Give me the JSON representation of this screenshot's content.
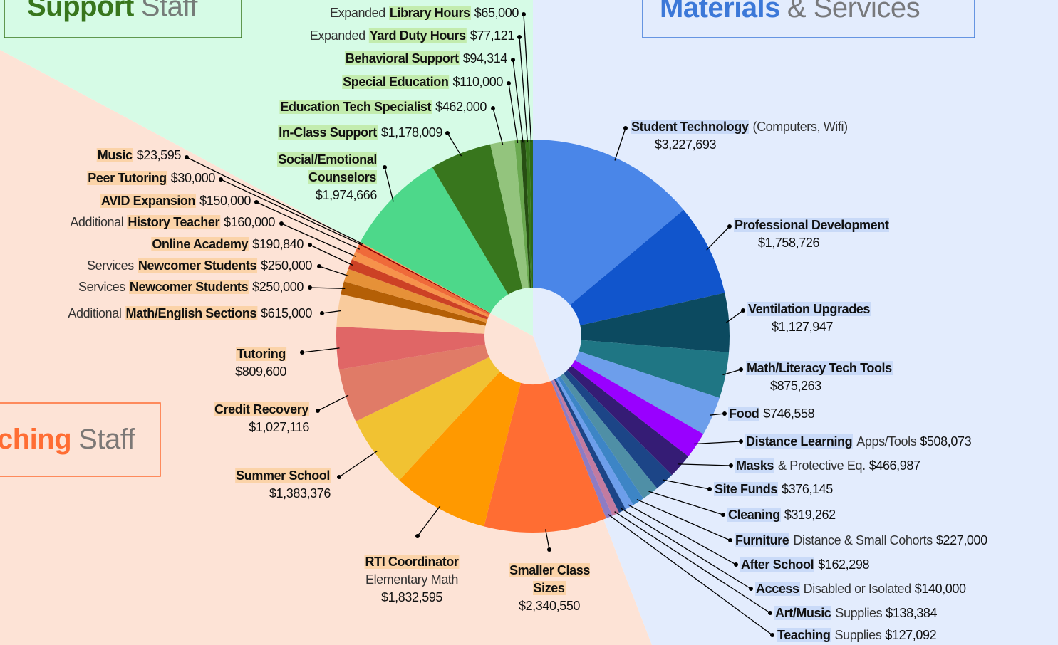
{
  "chart_data": {
    "type": "pie",
    "categories": [
      "Student Technology",
      "Professional Development",
      "Ventilation Upgrades",
      "Math/Literacy Tech Tools",
      "Food",
      "Distance Learning",
      "Masks",
      "Site Funds",
      "Cleaning",
      "Furniture",
      "After School",
      "Access",
      "Art/Music",
      "Teaching",
      "Smaller Class Sizes",
      "RTI Coordinator",
      "Summer School",
      "Credit Recovery",
      "Tutoring",
      "Math/English Sections",
      "Newcomer Students",
      "Newcomer Students",
      "Online Academy",
      "History Teacher",
      "AVID Expansion",
      "Peer Tutoring",
      "Music",
      "Social/Emotional Counselors",
      "In-Class Support",
      "Education Tech Specialist",
      "Special Education",
      "Behavioral Support",
      "Yard Duty Hours",
      "Library Hours"
    ],
    "prefixes": [
      null,
      null,
      null,
      null,
      null,
      null,
      null,
      null,
      null,
      null,
      null,
      null,
      null,
      null,
      null,
      null,
      null,
      null,
      null,
      "Additional",
      "Services",
      "Services",
      null,
      "Additional",
      null,
      null,
      null,
      null,
      null,
      null,
      null,
      null,
      "Expanded",
      "Expanded"
    ],
    "notes": [
      "(Computers, Wifi)",
      null,
      null,
      null,
      null,
      "Apps/Tools",
      "& Protective Eq.",
      null,
      null,
      "Distance & Small Cohorts",
      null,
      "Disabled or Isolated",
      "Supplies",
      "Supplies",
      null,
      "Elementary Math",
      null,
      null,
      null,
      null,
      null,
      null,
      null,
      null,
      null,
      null,
      null,
      null,
      null,
      null,
      null,
      null,
      null,
      null
    ],
    "values": [
      3227693,
      1758726,
      1127947,
      875263,
      746558,
      508073,
      466987,
      376145,
      319262,
      227000,
      162298,
      140000,
      138384,
      127092,
      2340550,
      1832595,
      1383376,
      1027116,
      809600,
      615000,
      250000,
      250000,
      190840,
      160000,
      150000,
      30000,
      23595,
      1974666,
      1178009,
      462000,
      110000,
      94314,
      77121,
      65000
    ],
    "value_labels": [
      "$3,227,693",
      "$1,758,726",
      "$1,127,947",
      "$875,263",
      "$746,558",
      "$508,073",
      "$466,987",
      "$376,145",
      "$319,262",
      "$227,000",
      "$162,298",
      "$140,000",
      "$138,384",
      "$127,092",
      "$2,340,550",
      "$1,832,595",
      "$1,383,376",
      "$1,027,116",
      "$809,600",
      "$615,000",
      "$250,000",
      "$250,000",
      "$190,840",
      "$160,000",
      "$150,000",
      "$30,000",
      "$23,595",
      "$1,974,666",
      "$1,178,009",
      "$462,000",
      "$110,000",
      "$94,314",
      "$77,121",
      "$65,000"
    ],
    "colors": [
      "#4a86e8",
      "#1155cc",
      "#0c4a60",
      "#1f7684",
      "#6d9eeb",
      "#9900ff",
      "#351c75",
      "#1c4587",
      "#4f8fa6",
      "#3d85c6",
      "#6d9eeb",
      "#1c4587",
      "#c27ba0",
      "#8e7cc3",
      "#ff6d33",
      "#ff9900",
      "#f1c232",
      "#e07b67",
      "#e06666",
      "#f9cb9c",
      "#b45f06",
      "#e69138",
      "#cc4125",
      "#f6924b",
      "#ef6a3a",
      "#990000",
      "#f4a460",
      "#4dd88a",
      "#38761d",
      "#93c47d",
      "#6aa84f",
      "#274e13",
      "#38761d",
      "#2f6b1a"
    ],
    "category_groups": [
      0,
      0,
      0,
      0,
      0,
      0,
      0,
      0,
      0,
      0,
      0,
      0,
      0,
      0,
      1,
      1,
      1,
      1,
      1,
      1,
      1,
      1,
      1,
      1,
      1,
      1,
      1,
      2,
      2,
      2,
      2,
      2,
      2,
      2
    ],
    "groups": [
      {
        "name": "Materials",
        "rest": "& Services",
        "color": "#3c78d8",
        "highlight": "#c9daf8"
      },
      {
        "name": "ching",
        "rest": "Staff",
        "color": "#ff6d33",
        "highlight": "#fbd3a8"
      },
      {
        "name": "Support",
        "rest": "Staff",
        "color": "#38761d",
        "highlight": "#c3ecae"
      }
    ]
  }
}
